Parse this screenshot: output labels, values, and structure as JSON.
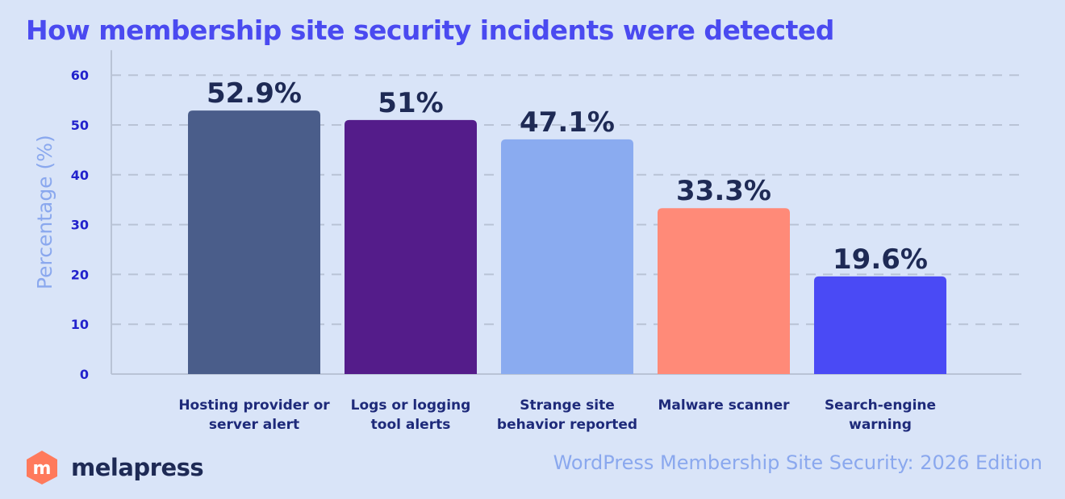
{
  "title": "How membership site security incidents were detected",
  "chart_data": {
    "type": "bar",
    "title": "How membership site security incidents were detected",
    "ylabel": "Percentage (%)",
    "xlabel": "",
    "ylim": [
      0,
      65
    ],
    "yticks": [
      0,
      10,
      20,
      30,
      40,
      50,
      60
    ],
    "grid": true,
    "categories": [
      [
        "Hosting provider or",
        "server alert"
      ],
      [
        "Logs or logging",
        "tool alerts"
      ],
      [
        "Strange site",
        "behavior reported"
      ],
      [
        "Malware scanner"
      ],
      [
        "Search-engine",
        "warning"
      ]
    ],
    "values": [
      52.9,
      51,
      47.1,
      33.3,
      19.6
    ],
    "data_labels": [
      "52.9%",
      "51%",
      "47.1%",
      "33.3%",
      "19.6%"
    ],
    "colors": [
      "#4a5d8a",
      "#541c8a",
      "#8aabf0",
      "#ff8a78",
      "#4a4af5"
    ]
  },
  "brand": {
    "name": "melapress",
    "logo_letter": "m",
    "logo_color": "#ff7a5c"
  },
  "footer": "WordPress Membership Site Security: 2026 Edition",
  "colors": {
    "accent": "#4a4af0",
    "tick_text": "#2222cc",
    "label_text": "#1e2a7a",
    "value_text": "#1e2a55",
    "ylabel": "#8aa8ee",
    "grid": "#b9c3d6",
    "axis": "#b9c3d6"
  }
}
